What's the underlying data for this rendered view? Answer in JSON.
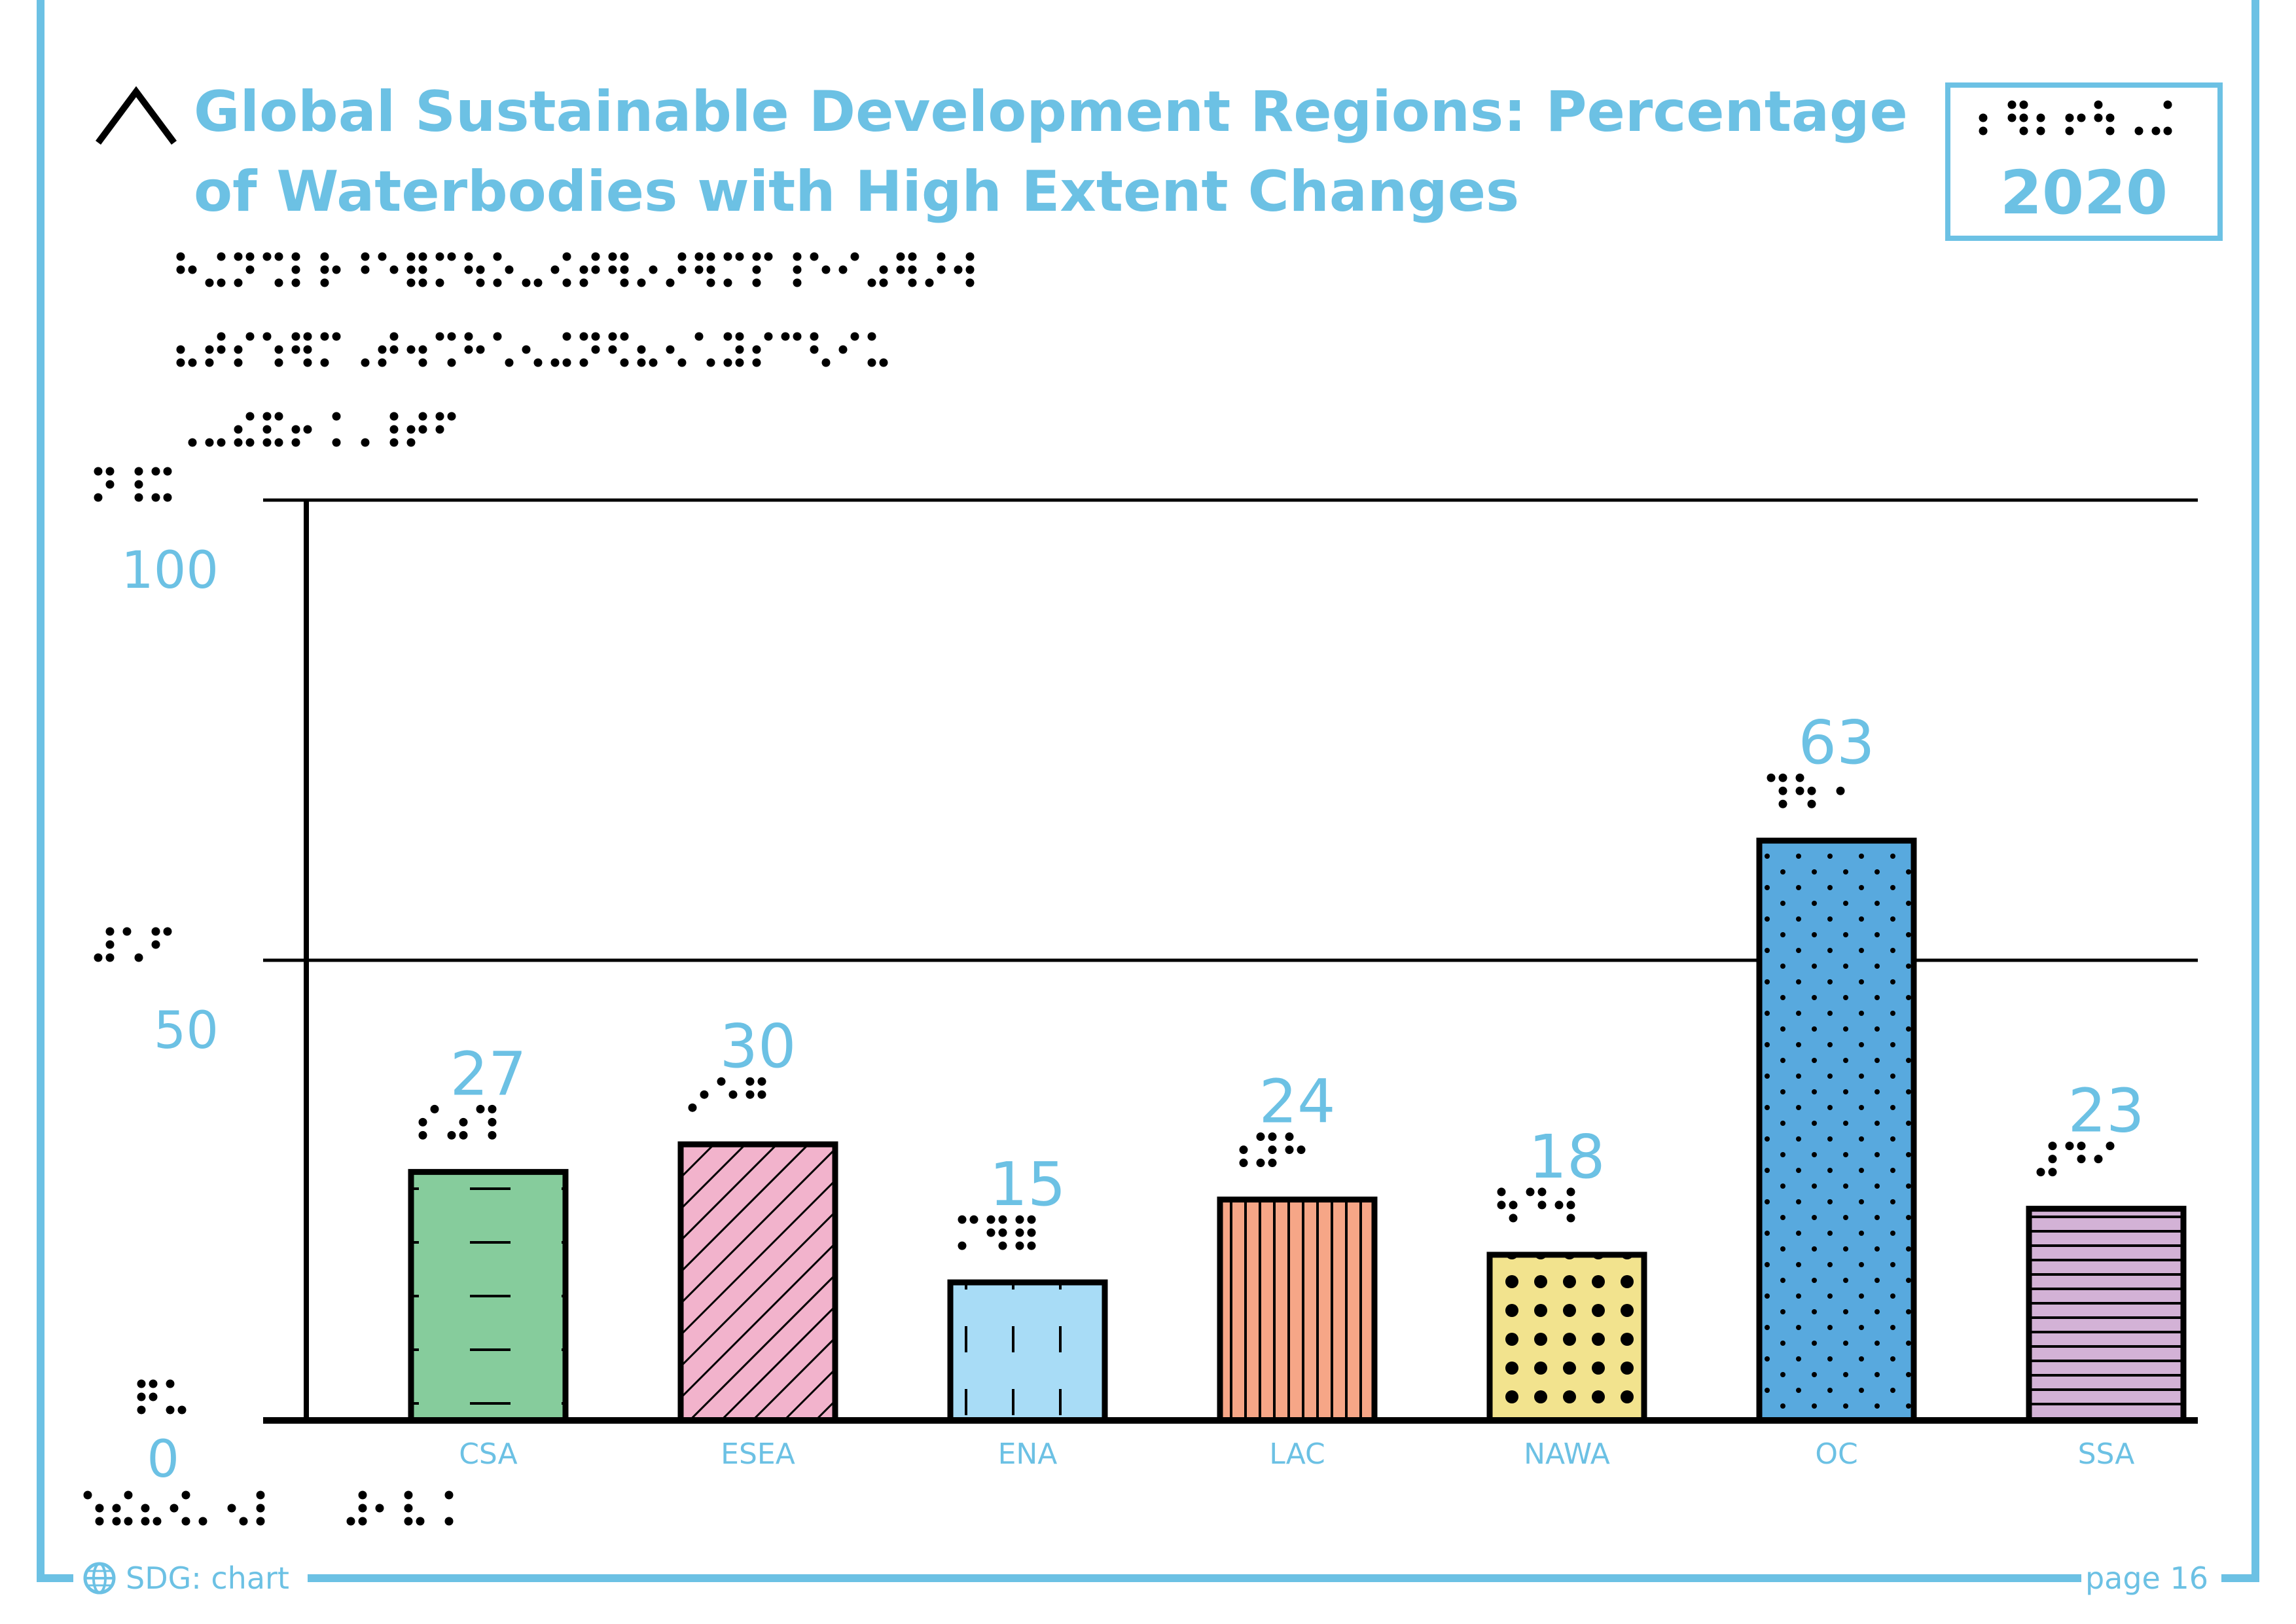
{
  "colors": {
    "accent": "#6cc1e4",
    "frame": "#6cc1e4",
    "ink": "#000000"
  },
  "header": {
    "title_line1": "Global Sustainable Development Regions: Percentage",
    "title_line2": "of Waterbodies with High Extent Changes",
    "year": "2020",
    "caret_icon": "caret-up-icon"
  },
  "footer": {
    "left_label": "SDG: chart",
    "left_icon": "globe-icon",
    "page_label": "page 16"
  },
  "chart_data": {
    "type": "bar",
    "title": "Global Sustainable Development Regions: Percentage of Waterbodies with High Extent Changes",
    "xlabel": "",
    "ylabel": "",
    "ylim": [
      0,
      100
    ],
    "yticks": [
      0,
      50,
      100
    ],
    "ytick_labels": [
      "0",
      "50",
      "100"
    ],
    "grid": true,
    "categories": [
      "CSA",
      "ESEA",
      "ENA",
      "LAC",
      "NAWA",
      "OC",
      "SSA"
    ],
    "values": [
      27,
      30,
      15,
      24,
      18,
      63,
      23
    ],
    "value_labels": [
      "27",
      "30",
      "15",
      "24",
      "18",
      "63",
      "23"
    ],
    "bar_colors": [
      "#86cc9c",
      "#f2b3cc",
      "#a8dcf6",
      "#f6a687",
      "#f2e38e",
      "#58a9de",
      "#d3b2d6"
    ],
    "bar_patterns": [
      "dashes",
      "diagonal",
      "vertical-dashes",
      "vertical-lines",
      "large-dots",
      "small-dots",
      "horizontal-lines"
    ]
  }
}
